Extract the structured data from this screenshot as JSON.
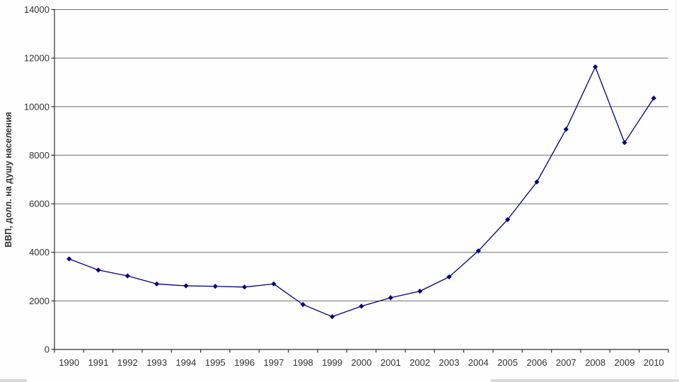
{
  "chart_data": {
    "type": "line",
    "title": "",
    "xlabel": "",
    "ylabel": "ВВП, долл. на душу населения",
    "categories": [
      "1990",
      "1991",
      "1992",
      "1993",
      "1994",
      "1995",
      "1996",
      "1997",
      "1998",
      "1999",
      "2000",
      "2001",
      "2002",
      "2003",
      "2004",
      "2005",
      "2006",
      "2007",
      "2008",
      "2009",
      "2010"
    ],
    "values": [
      3730,
      3270,
      3030,
      2700,
      2620,
      2600,
      2570,
      2700,
      1850,
      1350,
      1780,
      2130,
      2400,
      2990,
      4060,
      5350,
      6900,
      9070,
      11640,
      8520,
      10350
    ],
    "ylim": [
      0,
      14000
    ],
    "y_ticks": [
      0,
      2000,
      4000,
      6000,
      8000,
      10000,
      12000,
      14000
    ],
    "grid": "horizontal-only",
    "legend": "none",
    "marker_shape": "diamond",
    "line_color": "#000080",
    "gridline_color": "#6f6f6f",
    "axis_color": "#2f2f2f",
    "text_color": "#333333",
    "background": "#fefefe"
  }
}
